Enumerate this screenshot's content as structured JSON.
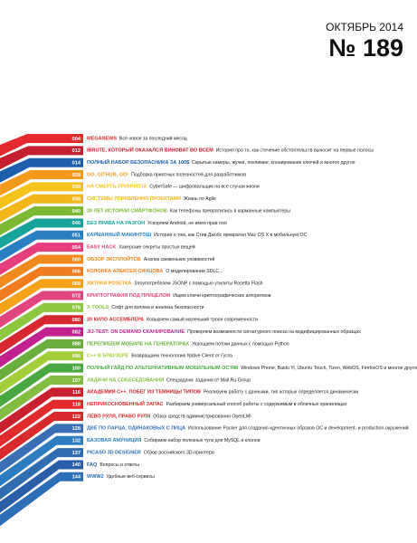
{
  "header": {
    "month": "ОКТЯБРЬ 2014",
    "issue": "№ 189"
  },
  "contents": [
    {
      "page": "004",
      "title": "MEGANEWS",
      "description": "Всё новое за последний месяц",
      "color": "#e42a2e"
    },
    {
      "page": "012",
      "title": "IBRUTE, КОТОРЫЙ ОКАЗАЛСЯ ВИНОВАТ ВО ВСЕМ",
      "description": "История про то, как стечение обстоятельств выносит на первые полосы",
      "color": "#c4202f"
    },
    {
      "page": "014",
      "title": "ПОЛНЫЙ НАБОР БЕЗОПАСНИКА ЗА 100$",
      "description": "Скрытые камеры, жучки, локпикинг, клонирование ключей и многое другое",
      "color": "#1d5fad"
    },
    {
      "page": "028",
      "title": "GO, GITHUB, GO!",
      "description": "Подборка приятных полезностей для разработчиков",
      "color": "#f39a1d"
    },
    {
      "page": "030",
      "title": "НА СМЕРТЬ ТРУКРИПТА",
      "description": "CyberSafe — шифровальщик на все случаи жизни",
      "color": "#f6c21c"
    },
    {
      "page": "038",
      "title": "СИСТЕМЫ УПРАВЛЕНИЯ ПРОЕКТАМИ",
      "description": "Жизнь по Agile",
      "color": "#f2b61a"
    },
    {
      "page": "040",
      "title": "20 ЛЕТ ИСТОРИИ СМАРТФОНОВ",
      "description": "Как телефоны превратились в карманные компьютеры",
      "color": "#7cb832"
    },
    {
      "page": "046",
      "title": "БЕЗ ПРАВА НА РАЗГОН",
      "description": "Ускоряем Android, не имея прав root",
      "color": "#17a39a"
    },
    {
      "page": "051",
      "title": "КАРМАННЫЙ МАКИНТОШ",
      "description": "История о том, как Стив Джобс превратил Mac OS X в мобильную ОС",
      "color": "#2a7ec2"
    },
    {
      "page": "054",
      "title": "EASY HACK",
      "description": "Хакерские секреты простых вещей",
      "color": "#e63d7c"
    },
    {
      "page": "060",
      "title": "ОБЗОР ЭКСПЛОЙТОВ",
      "description": "Анализ свеженьких уязвимостей",
      "color": "#f08a1e"
    },
    {
      "page": "066",
      "title": "КОЛОНКА АЛЕКСЕЯ СИНЦОВА",
      "description": "О моделировании SDLC...",
      "color": "#f07c1f"
    },
    {
      "page": "068",
      "title": "ХИТРАЯ РОЗЕТКА",
      "description": "Злоупотребляем JSONP с помощью утилиты Rosetta Flash",
      "color": "#f5a21b"
    },
    {
      "page": "072",
      "title": "КРИПТОГРАФИЯ ПОД ПРИЦЕЛОМ",
      "description": "Ищем ключи криптографических алгоритмов",
      "color": "#e0457f"
    },
    {
      "page": "078",
      "title": "X-TOOLS",
      "description": "Софт для взлома и анализа безопасности",
      "color": "#8dc63f"
    },
    {
      "page": "080",
      "title": "20 КИЛО АССЕМБЛЕРА",
      "description": "Ковыряем самый маленький троян современности",
      "color": "#d7282f"
    },
    {
      "page": "082",
      "title": "JIJ-TEST: ON DEMAND СКАНИРОВАНИЕ",
      "description": "Проверяем возможности сигнатурного поиска на модифицированных образцах",
      "color": "#c2208f"
    },
    {
      "page": "088",
      "title": "ПЕРЕПИШЕМ МОБИЛЕ НА ГЕНЕРАТОРАХ",
      "description": "Укрощаем потоки данных с помощью Python",
      "color": "#6aaf3d"
    },
    {
      "page": "096",
      "title": "C++ В БРАУЗЕРЕ",
      "description": "Возвращаем технологию Native Client от Гугла",
      "color": "#a3cd39"
    },
    {
      "page": "100",
      "title": "ПОЛНЫЙ ГАЙД ПО АЛЬТЕРНАТИВНЫМ МОБИЛЬНЫМ ОС'ЯМ",
      "description": "Windows Phone, Baidu Yi, Ubuntu Touch, Tizen, WebOS, FirefoxOS и многое другое",
      "color": "#4aa843"
    },
    {
      "page": "107",
      "title": "ЗАДАЧИ НА СОБЕСЕДОВАНИИ",
      "description": "Спецзадачи: задания от Mail.Ru Group",
      "color": "#82bd41"
    },
    {
      "page": "116",
      "title": "АКАДЕМИЯ С++. ПОБЕГ ИЗ ТЕМНИЦЫ ТИПОВ",
      "description": "Реализуем работу с данными, тип которых определяется динамически",
      "color": "#c8202e"
    },
    {
      "page": "118",
      "title": "НЕПРИКОСНОВЕННЫЙ ЗАПАС",
      "description": "Разбираем универсальный способ работы с содержимым в облачных хранилищах",
      "color": "#e02a2c"
    },
    {
      "page": "122",
      "title": "ЛЕВО РУЛЯ, ПРАВО РУЛЯ",
      "description": "Обзор средств администрирования OpenLMI",
      "color": "#d8292c"
    },
    {
      "page": "128",
      "title": "ДВЕ ПО ПАРЦА, ОДИНАКОВЫХ С ЛИЦА",
      "description": "Использование Packer для создания идентичных образов ОС и development- и production-окружений",
      "color": "#3a6fb5"
    },
    {
      "page": "132",
      "title": "БАЗОВАЯ АМУНИЦИЯ",
      "description": "Собираем набор полезных тулз для MySQL и клонов",
      "color": "#2c7cbf"
    },
    {
      "page": "137",
      "title": "PICASO 3D DESIGNER",
      "description": "Обзор российского 3D-принтера",
      "color": "#2f6db0"
    },
    {
      "page": "140",
      "title": "FAQ",
      "description": "Вопросы и ответы",
      "color": "#2a5ea8"
    },
    {
      "page": "144",
      "title": "WWW2",
      "description": "Удобные веб-сервисы",
      "color": "#2c6fb6"
    }
  ]
}
